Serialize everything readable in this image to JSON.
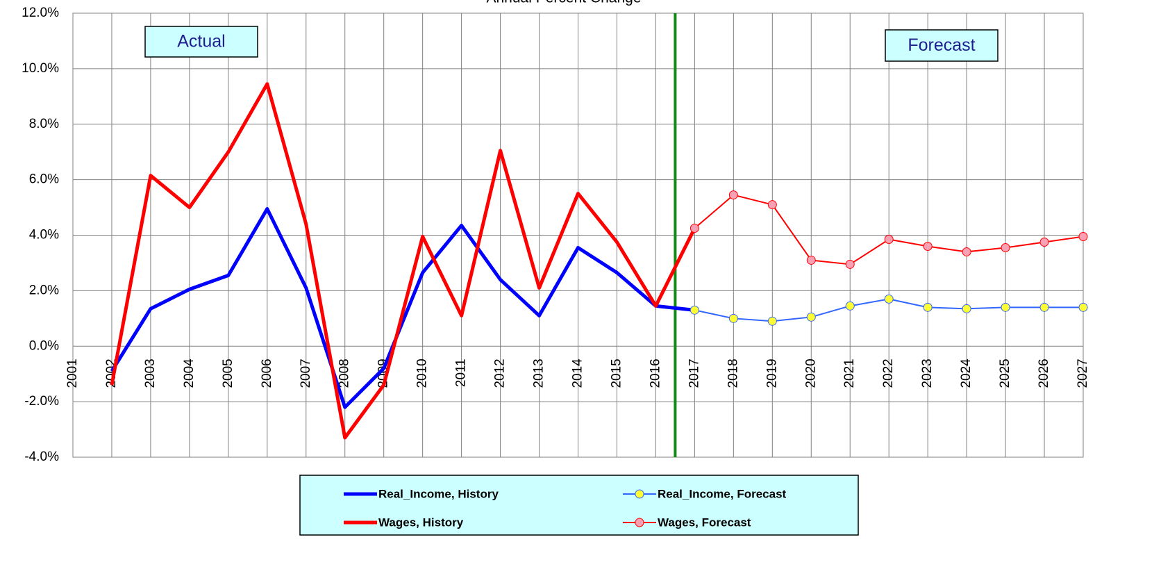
{
  "chart_data": {
    "type": "line",
    "title": "Annual Percent Change",
    "categories": [
      "2001",
      "2002",
      "2003",
      "2004",
      "2005",
      "2006",
      "2007",
      "2008",
      "2009",
      "2010",
      "2011",
      "2012",
      "2013",
      "2014",
      "2015",
      "2016",
      "2017",
      "2018",
      "2019",
      "2020",
      "2021",
      "2022",
      "2023",
      "2024",
      "2025",
      "2026",
      "2027"
    ],
    "series": [
      {
        "name": "Real_Income, History",
        "color": "#0000ff",
        "line_width": 5,
        "marker": null,
        "values": [
          null,
          -0.9,
          1.35,
          2.05,
          2.55,
          4.95,
          2.1,
          -2.2,
          -0.8,
          2.65,
          4.35,
          2.4,
          1.1,
          3.55,
          2.65,
          1.45,
          1.3,
          null,
          null,
          null,
          null,
          null,
          null,
          null,
          null,
          null,
          null
        ]
      },
      {
        "name": "Real_Income, Forecast",
        "color": "#3366ff",
        "line_width": 2,
        "marker": "circle",
        "marker_fill": "#ffff33",
        "values": [
          null,
          null,
          null,
          null,
          null,
          null,
          null,
          null,
          null,
          null,
          null,
          null,
          null,
          null,
          null,
          null,
          1.3,
          1.0,
          0.9,
          1.05,
          1.45,
          1.7,
          1.4,
          1.35,
          1.4,
          1.4,
          1.4
        ]
      },
      {
        "name": "Wages, History",
        "color": "#ff0000",
        "line_width": 5,
        "marker": null,
        "values": [
          null,
          -1.4,
          6.15,
          5.0,
          7.0,
          9.45,
          4.4,
          -3.3,
          -1.4,
          3.95,
          1.1,
          7.05,
          2.1,
          5.5,
          3.75,
          1.45,
          4.25,
          null,
          null,
          null,
          null,
          null,
          null,
          null,
          null,
          null,
          null
        ]
      },
      {
        "name": "Wages, Forecast",
        "color": "#ff0000",
        "line_width": 2,
        "marker": "circle",
        "marker_fill": "#f8a0b4",
        "values": [
          null,
          null,
          null,
          null,
          null,
          null,
          null,
          null,
          null,
          null,
          null,
          null,
          null,
          null,
          null,
          null,
          4.25,
          5.45,
          5.1,
          3.1,
          2.95,
          3.85,
          3.6,
          3.4,
          3.55,
          3.75,
          3.95
        ]
      }
    ],
    "annotations": [
      "Actual",
      "Forecast"
    ],
    "ylim": [
      -4,
      12
    ],
    "yticks": [
      {
        "value": -4,
        "label": "-4.0%"
      },
      {
        "value": -2,
        "label": "-2.0%"
      },
      {
        "value": 0,
        "label": "0.0%"
      },
      {
        "value": 2,
        "label": "2.0%"
      },
      {
        "value": 4,
        "label": "4.0%"
      },
      {
        "value": 6,
        "label": "6.0%"
      },
      {
        "value": 8,
        "label": "8.0%"
      },
      {
        "value": 10,
        "label": "10.0%"
      },
      {
        "value": 12,
        "label": "12.0%"
      }
    ],
    "grid": true,
    "legend": "bottom"
  }
}
